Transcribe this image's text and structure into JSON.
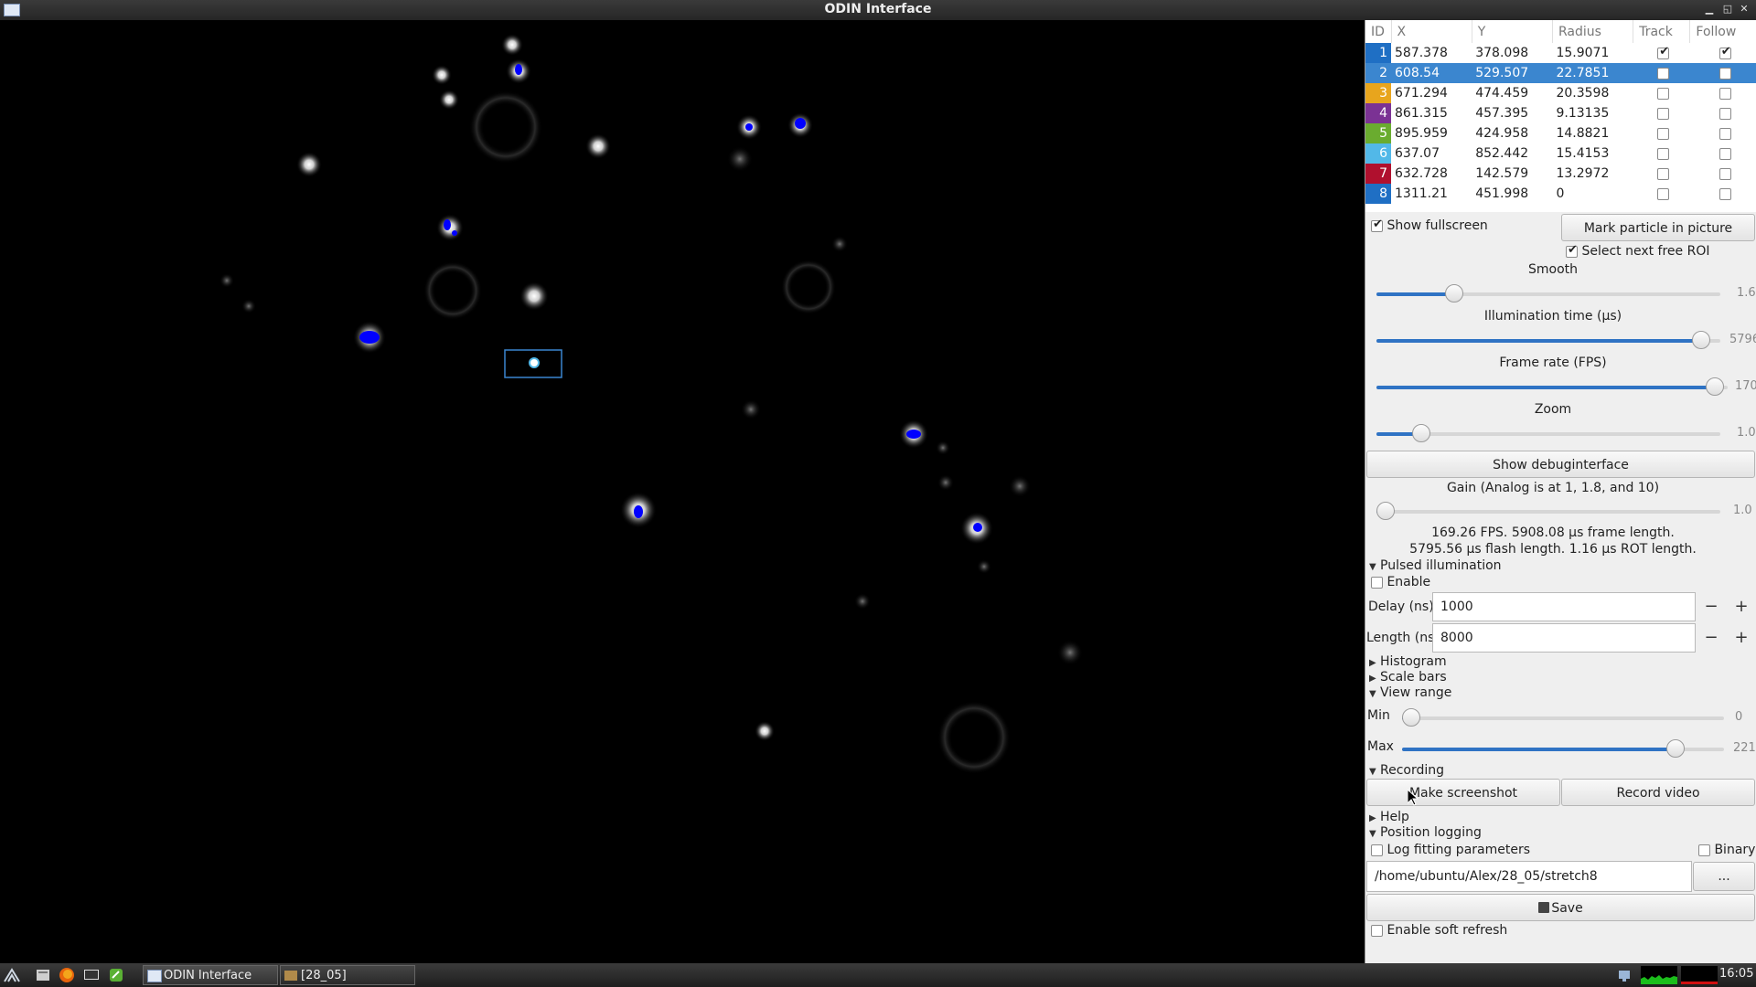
{
  "window": {
    "title": "ODIN Interface"
  },
  "roi_table": {
    "headers": [
      "ID",
      "X",
      "Y",
      "Radius",
      "Track",
      "Follow"
    ],
    "rows": [
      {
        "id": "1",
        "x": "587.378",
        "y": "378.098",
        "radius": "15.9071",
        "track": true,
        "follow": true,
        "color": "#1f6fc4"
      },
      {
        "id": "2",
        "x": "608.54",
        "y": "529.507",
        "radius": "22.7851",
        "track": false,
        "follow": false,
        "color": "#3b86cf"
      },
      {
        "id": "3",
        "x": "671.294",
        "y": "474.459",
        "radius": "20.3598",
        "track": false,
        "follow": false,
        "color": "#e8a51d"
      },
      {
        "id": "4",
        "x": "861.315",
        "y": "457.395",
        "radius": "9.13135",
        "track": false,
        "follow": false,
        "color": "#7b3294"
      },
      {
        "id": "5",
        "x": "895.959",
        "y": "424.958",
        "radius": "14.8821",
        "track": false,
        "follow": false,
        "color": "#6aac2f"
      },
      {
        "id": "6",
        "x": "637.07",
        "y": "852.442",
        "radius": "15.4153",
        "track": false,
        "follow": false,
        "color": "#52b8e8"
      },
      {
        "id": "7",
        "x": "632.728",
        "y": "142.579",
        "radius": "13.2972",
        "track": false,
        "follow": false,
        "color": "#b0102e"
      },
      {
        "id": "8",
        "x": "1311.21",
        "y": "451.998",
        "radius": "0",
        "track": false,
        "follow": false,
        "color": "#1f6fc4"
      }
    ]
  },
  "controls": {
    "show_fullscreen": "Show fullscreen",
    "mark_particle": "Mark particle in picture",
    "select_next_roi": "Select next free ROI",
    "smooth_label": "Smooth",
    "smooth_value": "1.6",
    "smooth_level": 0.21,
    "illum_label": "Illumination time (µs)",
    "illum_value": "5796",
    "illum_level": 0.97,
    "fps_label": "Frame rate (FPS)",
    "fps_value": "170",
    "fps_level": 0.99,
    "zoom_label": "Zoom",
    "zoom_value": "1.0",
    "zoom_level": 0.11,
    "debug_button": "Show debuginterface",
    "gain_label": "Gain (Analog is at 1, 1.8, and 10)",
    "gain_value": "1.0",
    "gain_level": 0.0,
    "status_line1": "169.26 FPS. 5908.08 µs frame length.",
    "status_line2": "5795.56 µs flash length. 1.16 µs ROT length."
  },
  "pulsed": {
    "title": "Pulsed illumination",
    "enable": "Enable",
    "delay_label": "Delay (ns)",
    "delay_value": "1000",
    "length_label": "Length (ns)",
    "length_value": "8000",
    "minus": "−",
    "plus": "+"
  },
  "sections": {
    "histogram": "Histogram",
    "scale_bars": "Scale bars",
    "view_range": "View range",
    "min_label": "Min",
    "min_value": "0",
    "min_level": 0.0,
    "max_label": "Max",
    "max_value": "221",
    "max_level": 0.87,
    "recording": "Recording",
    "make_screenshot": "Make screenshot",
    "record_video": "Record video",
    "help": "Help",
    "position_logging": "Position logging",
    "log_fitting": "Log fitting parameters",
    "binary": "Binary",
    "path_value": "/home/ubuntu/Alex/28_05/stretch8",
    "browse": "...",
    "save": "Save",
    "soft_refresh": "Enable soft refresh"
  },
  "taskbar": {
    "task1": "ODIN Interface",
    "task2": "[28_05]",
    "clock": "16:05"
  }
}
